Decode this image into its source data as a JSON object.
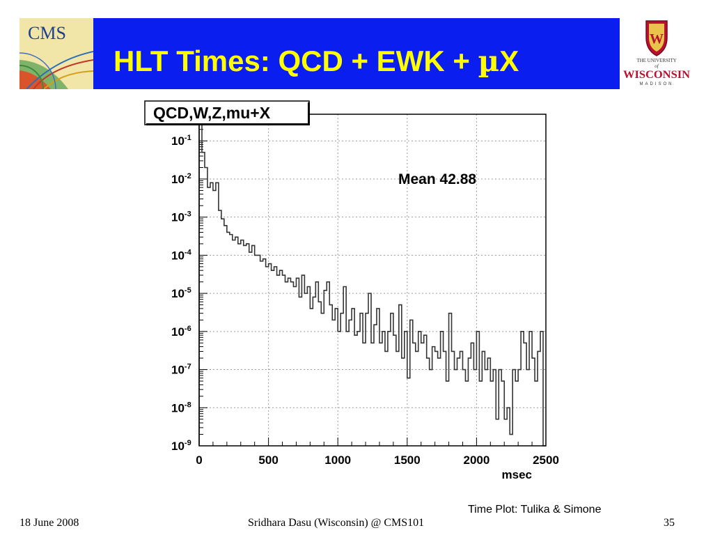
{
  "slide": {
    "title_main": "HLT Times: QCD + EWK + ",
    "title_mu": "µ",
    "title_end": "X",
    "credit": "Time Plot:  Tulika & Simone",
    "footer_date": "18 June 2008",
    "footer_author": "Sridhara Dasu (Wisconsin) @ CMS101",
    "footer_page": "35"
  },
  "logos": {
    "cms_text": "CMS",
    "uw_line1": "THE UNIVERSITY",
    "uw_line2": "of",
    "uw_name": "WISCONSIN",
    "uw_line3": "MADISON"
  },
  "colors": {
    "header_blue": "#0b1ef0",
    "title_yellow": "#ffff00",
    "uw_red": "#b8102e",
    "histogram_line": "#333333"
  },
  "chart_data": {
    "type": "histogram",
    "title": "QCD,W,Z,mu+X",
    "annotation": "Mean 42.88",
    "xlabel": "msec",
    "ylabel": "",
    "xlim": [
      0,
      2500
    ],
    "ylim": [
      1e-09,
      0.5
    ],
    "yscale": "log",
    "grid": true,
    "xticks": [
      "0",
      "500",
      "1000",
      "1500",
      "2000",
      "2500"
    ],
    "yticks": [
      {
        "base": "10",
        "exp": "-1",
        "value": 0.1
      },
      {
        "base": "10",
        "exp": "-2",
        "value": 0.01
      },
      {
        "base": "10",
        "exp": "-3",
        "value": 0.001
      },
      {
        "base": "10",
        "exp": "-4",
        "value": 0.0001
      },
      {
        "base": "10",
        "exp": "-5",
        "value": 1e-05
      },
      {
        "base": "10",
        "exp": "-6",
        "value": 1e-06
      },
      {
        "base": "10",
        "exp": "-7",
        "value": 1e-07
      },
      {
        "base": "10",
        "exp": "-8",
        "value": 1e-08
      },
      {
        "base": "10",
        "exp": "-9",
        "value": 1e-09
      }
    ],
    "series": [
      {
        "x": [
          0,
          20,
          40,
          60,
          80,
          100,
          120,
          140,
          160,
          180,
          200,
          220,
          240,
          260,
          280,
          300,
          320,
          340,
          360,
          380,
          400,
          420,
          440,
          460,
          480,
          500,
          520,
          540,
          560,
          580,
          600,
          620,
          640,
          660,
          680,
          700,
          720,
          740,
          760,
          780,
          800,
          820,
          840,
          860,
          880,
          900,
          920,
          940,
          960,
          980,
          1000,
          1020,
          1040,
          1060,
          1080,
          1100,
          1120,
          1140,
          1160,
          1180,
          1200,
          1220,
          1240,
          1260,
          1280,
          1300,
          1320,
          1340,
          1360,
          1380,
          1400,
          1420,
          1440,
          1460,
          1480,
          1500,
          1520,
          1540,
          1560,
          1580,
          1600,
          1620,
          1640,
          1660,
          1680,
          1700,
          1720,
          1740,
          1760,
          1780,
          1800,
          1820,
          1840,
          1860,
          1880,
          1900,
          1920,
          1940,
          1960,
          1980,
          2000,
          2020,
          2040,
          2060,
          2080,
          2100,
          2120,
          2140,
          2160,
          2180,
          2200,
          2220,
          2240,
          2260,
          2280,
          2300,
          2320,
          2340,
          2360,
          2380,
          2400,
          2420,
          2440,
          2460,
          2480
        ],
        "y": [
          0.3,
          0.05,
          0.02,
          0.006,
          0.008,
          0.005,
          0.008,
          0.0015,
          0.0009,
          0.0006,
          0.0004,
          0.00035,
          0.00025,
          0.0003,
          0.0002,
          0.00025,
          0.00018,
          0.0002,
          0.00012,
          0.00018,
          0.0001,
          0.0001,
          7e-05,
          8e-05,
          5e-05,
          6e-05,
          4e-05,
          5e-05,
          3e-05,
          4e-05,
          3e-05,
          2e-05,
          2.5e-05,
          2e-05,
          1.5e-05,
          2.5e-05,
          8e-06,
          3e-05,
          1e-05,
          1.5e-05,
          4e-06,
          8e-06,
          2e-05,
          6e-06,
          3e-06,
          1.2e-05,
          2e-05,
          5e-06,
          2e-06,
          4e-06,
          1e-06,
          3e-06,
          1.5e-05,
          1e-06,
          2e-06,
          4e-06,
          8e-07,
          1e-06,
          3e-06,
          5e-07,
          3e-06,
          1e-05,
          5e-07,
          1.5e-06,
          4e-06,
          5e-07,
          1e-06,
          3e-07,
          1e-06,
          3e-06,
          8e-07,
          3e-07,
          5e-06,
          2e-07,
          1e-06,
          6e-08,
          2e-06,
          5e-07,
          3e-07,
          1e-06,
          5e-07,
          8e-07,
          2e-07,
          1e-07,
          4e-07,
          3e-07,
          2e-07,
          1e-06,
          3e-07,
          5e-08,
          3e-06,
          3e-07,
          1e-07,
          2e-07,
          3e-07,
          1e-07,
          5e-08,
          2e-07,
          5e-07,
          1e-07,
          1e-06,
          5e-08,
          3e-07,
          1e-07,
          2e-07,
          5e-08,
          1e-07,
          5e-09,
          1e-07,
          5e-08,
          5e-09,
          1e-08,
          2e-09,
          1e-07,
          5e-08,
          1e-07,
          1e-06,
          5e-07,
          1e-07,
          1e-06,
          2e-07,
          5e-08,
          3e-07,
          1e-06,
          1e-09
        ]
      }
    ]
  }
}
